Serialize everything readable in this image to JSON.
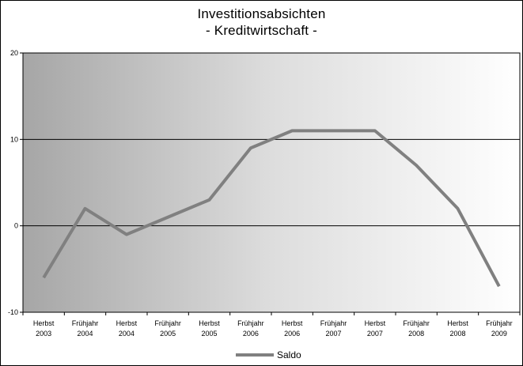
{
  "title": [
    "Investitionsabsichten",
    "- Kreditwirtschaft -"
  ],
  "chart_data": {
    "type": "line",
    "title": "Investitionsabsichten - Kreditwirtschaft -",
    "categories": [
      [
        "Herbst",
        "2003"
      ],
      [
        "Frühjahr",
        "2004"
      ],
      [
        "Herbst",
        "2004"
      ],
      [
        "Frühjahr",
        "2005"
      ],
      [
        "Herbst",
        "2005"
      ],
      [
        "Frühjahr",
        "2006"
      ],
      [
        "Herbst",
        "2006"
      ],
      [
        "Frühjahr",
        "2007"
      ],
      [
        "Herbst",
        "2007"
      ],
      [
        "Frühjahr",
        "2008"
      ],
      [
        "Herbst",
        "2008"
      ],
      [
        "Frühjahr",
        "2009"
      ]
    ],
    "series": [
      {
        "name": "Saldo",
        "values": [
          -6,
          2,
          -1,
          1,
          3,
          9,
          11,
          11,
          11,
          7,
          2,
          -7
        ],
        "color": "#808080"
      }
    ],
    "ylim": [
      -10,
      20
    ],
    "yticks": [
      -10,
      0,
      10,
      20
    ],
    "grid": true,
    "background": "gradient grey to white",
    "legend": "bottom-center"
  }
}
